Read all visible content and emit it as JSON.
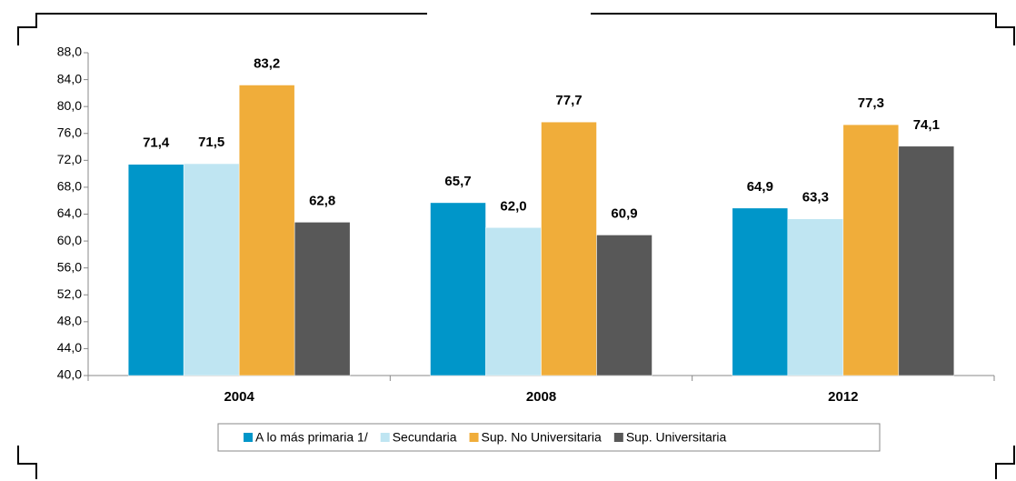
{
  "chart_data": {
    "type": "bar",
    "categories": [
      "2004",
      "2008",
      "2012"
    ],
    "series": [
      {
        "name": "A lo más primaria 1/",
        "color": "#0096c9",
        "values": [
          71.4,
          65.7,
          64.9
        ],
        "value_labels": [
          "71,4",
          "65,7",
          "64,9"
        ]
      },
      {
        "name": "Secundaria",
        "color": "#bfe5f2",
        "values": [
          71.5,
          62.0,
          63.3
        ],
        "value_labels": [
          "71,5",
          "62,0",
          "63,3"
        ]
      },
      {
        "name": "Sup. No Universitaria",
        "color": "#f0ad3a",
        "values": [
          83.2,
          77.7,
          77.3
        ],
        "value_labels": [
          "83,2",
          "77,7",
          "77,3"
        ]
      },
      {
        "name": "Sup. Universitaria",
        "color": "#585858",
        "values": [
          62.8,
          60.9,
          74.1
        ],
        "value_labels": [
          "62,8",
          "60,9",
          "74,1"
        ]
      }
    ],
    "ylim": [
      40,
      88
    ],
    "yticks": [
      {
        "value": 40,
        "label": "40,0"
      },
      {
        "value": 44,
        "label": "44,0"
      },
      {
        "value": 48,
        "label": "48,0"
      },
      {
        "value": 52,
        "label": "52,0"
      },
      {
        "value": 56,
        "label": "56,0"
      },
      {
        "value": 60,
        "label": "60,0"
      },
      {
        "value": 64,
        "label": "64,0"
      },
      {
        "value": 68,
        "label": "68,0"
      },
      {
        "value": 72,
        "label": "72,0"
      },
      {
        "value": 76,
        "label": "76,0"
      },
      {
        "value": 80,
        "label": "80,0"
      },
      {
        "value": 84,
        "label": "84,0"
      },
      {
        "value": 88,
        "label": "88,0"
      }
    ],
    "legend": "bottom"
  }
}
